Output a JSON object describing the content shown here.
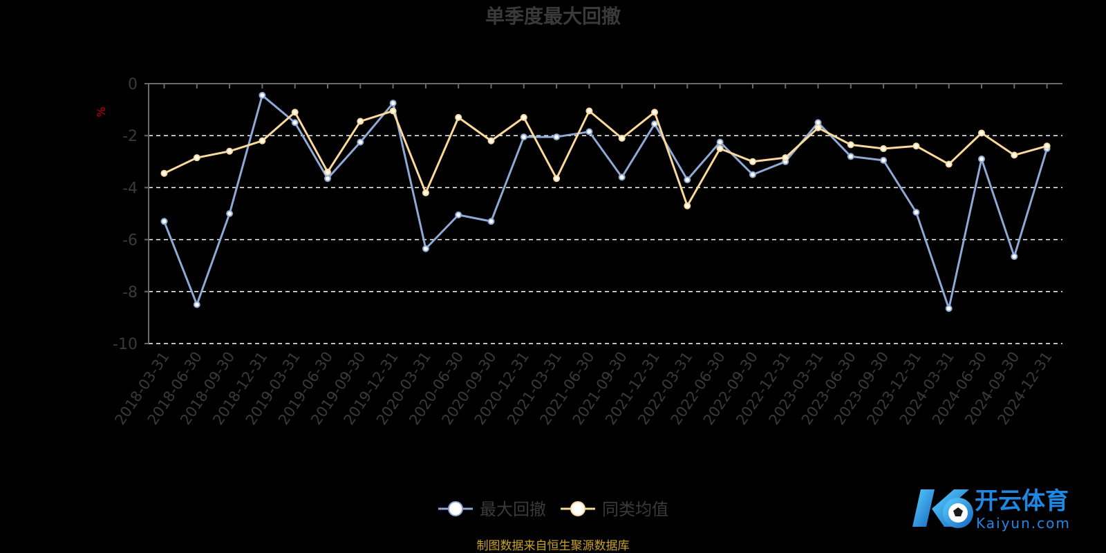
{
  "chart_data": {
    "type": "line",
    "title": "单季度最大回撤",
    "ylabel": "%",
    "ylim": [
      -10,
      0
    ],
    "yticks": [
      0,
      -2,
      -4,
      -6,
      -8,
      -10
    ],
    "grid": true,
    "legend_position": "bottom-center",
    "categories": [
      "2018-03-31",
      "2018-06-30",
      "2018-09-30",
      "2018-12-31",
      "2019-03-31",
      "2019-06-30",
      "2019-09-30",
      "2019-12-31",
      "2020-03-31",
      "2020-06-30",
      "2020-09-30",
      "2020-12-31",
      "2021-03-31",
      "2021-06-30",
      "2021-09-30",
      "2021-12-31",
      "2022-03-31",
      "2022-06-30",
      "2022-09-30",
      "2022-12-31",
      "2023-03-31",
      "2023-06-30",
      "2023-09-30",
      "2023-12-31",
      "2024-03-31",
      "2024-06-30",
      "2024-09-30",
      "2024-12-31"
    ],
    "series": [
      {
        "name": "最大回撤",
        "color": "#8fa9d6",
        "values": [
          -5.3,
          -8.5,
          -5.0,
          -0.45,
          -1.5,
          -3.65,
          -2.25,
          -0.75,
          -6.35,
          -5.05,
          -5.3,
          -2.05,
          -2.05,
          -1.85,
          -3.6,
          -1.55,
          -3.7,
          -2.25,
          -3.5,
          -3.0,
          -1.5,
          -2.8,
          -2.95,
          -4.95,
          -8.65,
          -2.9,
          -6.65,
          -2.5
        ]
      },
      {
        "name": "同类均值",
        "color": "#fbd99a",
        "values": [
          -3.45,
          -2.85,
          -2.6,
          -2.2,
          -1.1,
          -3.4,
          -1.45,
          -1.05,
          -4.2,
          -1.3,
          -2.2,
          -1.3,
          -3.65,
          -1.05,
          -2.1,
          -1.1,
          -4.7,
          -2.5,
          -3.0,
          -2.85,
          -1.7,
          -2.35,
          -2.5,
          -2.4,
          -3.1,
          -1.9,
          -2.75,
          -2.4
        ]
      }
    ]
  },
  "footer": {
    "source": "制图数据来自恒生聚源数据库"
  },
  "logo": {
    "text_cn": "开云体育",
    "text_en": "Kaiyun.com"
  },
  "colors": {
    "title": "#3a3a3a",
    "axis_text": "#3a3a3a",
    "axis_line": "#6a6a6a",
    "grid": "#ffffff",
    "unit": "#cc0000",
    "source": "#c9a227",
    "logo_accent": "#1e88e5"
  }
}
